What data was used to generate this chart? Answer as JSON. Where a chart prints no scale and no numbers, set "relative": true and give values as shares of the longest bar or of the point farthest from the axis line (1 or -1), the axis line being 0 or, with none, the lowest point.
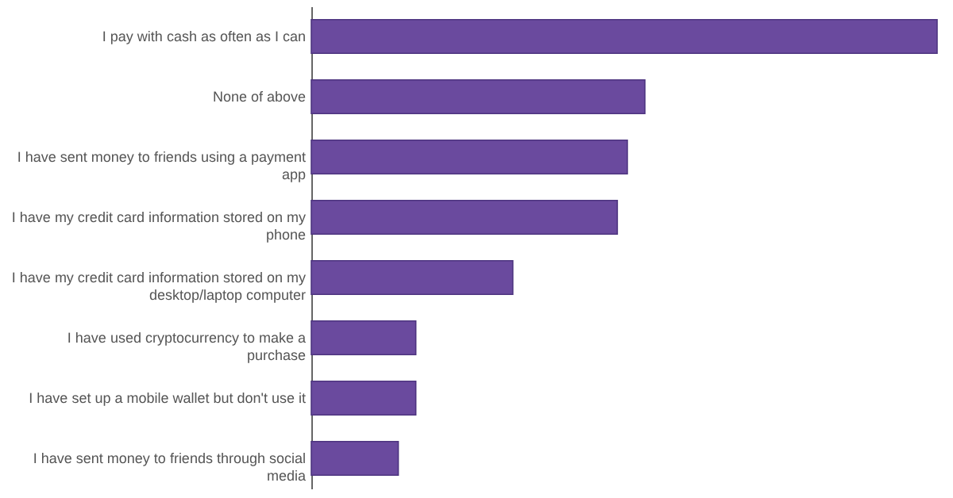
{
  "chart_data": {
    "type": "bar",
    "orientation": "horizontal",
    "relative": true,
    "categories": [
      "I pay with cash as often as I can",
      "None of above",
      "I have sent money to friends using a payment app",
      "I have my credit card information stored on my phone",
      "I have my credit card information stored on my desktop/laptop computer",
      "I have used cryptocurrency to make a purchase",
      "I have set up a mobile wallet but don't use it",
      "I have sent money to friends through social media"
    ],
    "values": [
      1,
      0.533,
      0.505,
      0.489,
      0.322,
      0.167,
      0.167,
      0.139
    ],
    "color": "#6a4a9e"
  }
}
